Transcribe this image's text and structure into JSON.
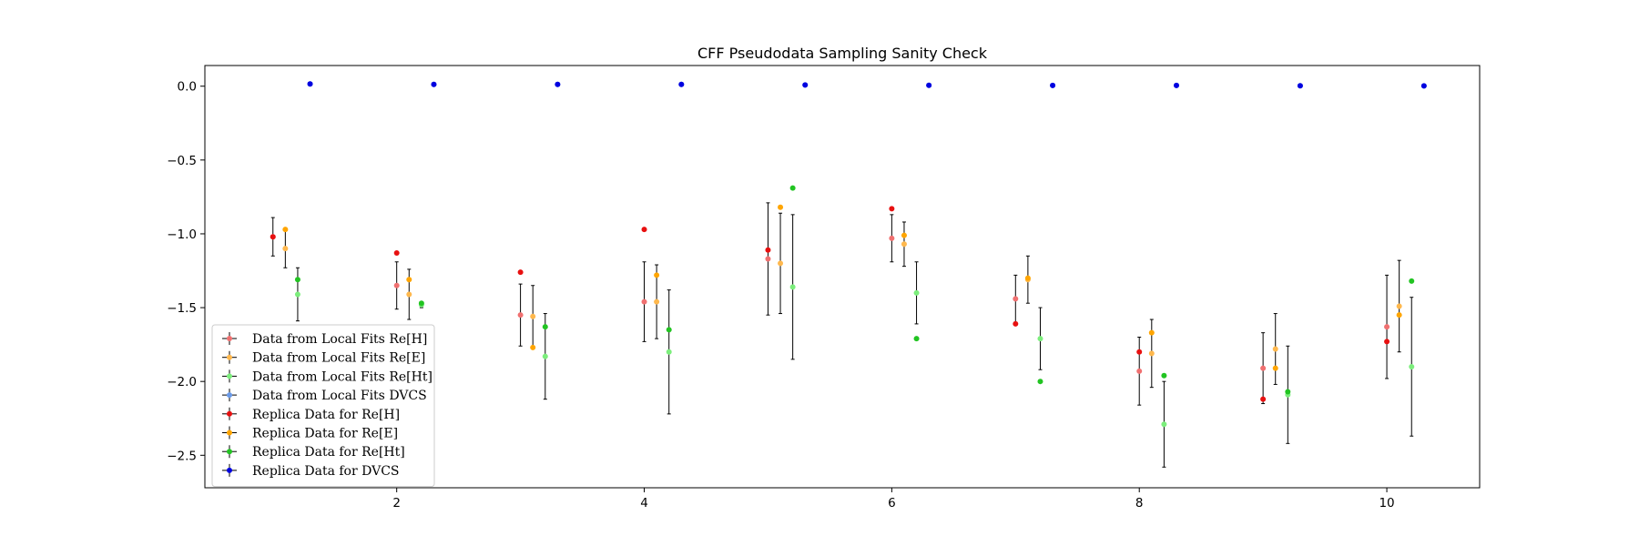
{
  "chart_data": {
    "type": "scatter",
    "title": "CFF Pseudodata Sampling Sanity Check",
    "xlabel": "",
    "ylabel": "",
    "xlim": [
      0.45,
      10.75
    ],
    "ylim": [
      -2.72,
      0.14
    ],
    "x_ticks": [
      2,
      4,
      6,
      8,
      10
    ],
    "y_ticks": [
      0.0,
      -0.5,
      -1.0,
      -1.5,
      -2.0,
      -2.5
    ],
    "grid": false,
    "legend_position": "lower-left",
    "series": [
      {
        "name": "Data from Local Fits Re[H]",
        "color": "#f07070",
        "kind": "errorbar",
        "x": [
          1,
          2,
          3,
          4,
          5,
          6,
          7,
          8,
          9,
          10
        ],
        "y": [
          -1.02,
          -1.35,
          -1.55,
          -1.46,
          -1.17,
          -1.03,
          -1.44,
          -1.93,
          -1.91,
          -1.63
        ],
        "err": [
          0.13,
          0.16,
          0.21,
          0.27,
          0.38,
          0.16,
          0.16,
          0.23,
          0.24,
          0.35
        ]
      },
      {
        "name": "Data from Local Fits Re[E]",
        "color": "#ffb84d",
        "kind": "errorbar",
        "x": [
          1.1,
          2.1,
          3.1,
          4.1,
          5.1,
          6.1,
          7.1,
          8.1,
          9.1,
          10.1
        ],
        "y": [
          -1.1,
          -1.41,
          -1.56,
          -1.46,
          -1.2,
          -1.07,
          -1.31,
          -1.81,
          -1.78,
          -1.49
        ],
        "err": [
          0.13,
          0.17,
          0.21,
          0.25,
          0.34,
          0.15,
          0.16,
          0.23,
          0.24,
          0.31
        ]
      },
      {
        "name": "Data from Local Fits Re[Ht]",
        "color": "#7cee7c",
        "kind": "errorbar",
        "x": [
          1.2,
          2.2,
          3.2,
          4.2,
          5.2,
          6.2,
          7.2,
          8.2,
          9.2,
          10.2
        ],
        "y": [
          -1.41,
          -1.48,
          -1.83,
          -1.8,
          -1.36,
          -1.4,
          -1.71,
          -2.29,
          -2.09,
          -1.9
        ],
        "err": [
          0.18,
          0.02,
          0.29,
          0.42,
          0.49,
          0.21,
          0.21,
          0.29,
          0.33,
          0.47
        ]
      },
      {
        "name": "Data from Local Fits DVCS",
        "color": "#6a9ae8",
        "kind": "errorbar",
        "x": [
          1.3,
          2.3,
          3.3,
          4.3,
          5.3,
          6.3,
          7.3,
          8.3,
          9.3,
          10.3
        ],
        "y": [
          0.015,
          0.012,
          0.012,
          0.012,
          0.008,
          0.006,
          0.005,
          0.005,
          0.003,
          0.002
        ],
        "err": [
          0.002,
          0.002,
          0.002,
          0.002,
          0.002,
          0.002,
          0.002,
          0.002,
          0.002,
          0.002
        ]
      },
      {
        "name": "Replica Data for Re[H]",
        "color": "#e81010",
        "kind": "replica",
        "x": [
          1,
          2,
          3,
          4,
          5,
          6,
          7,
          8,
          9,
          10
        ],
        "y": [
          -1.02,
          -1.13,
          -1.26,
          -0.97,
          -1.11,
          -0.83,
          -1.61,
          -1.8,
          -2.12,
          -1.73
        ]
      },
      {
        "name": "Replica Data for Re[E]",
        "color": "#ffa500",
        "kind": "replica",
        "x": [
          1.1,
          2.1,
          3.1,
          4.1,
          5.1,
          6.1,
          7.1,
          8.1,
          9.1,
          10.1
        ],
        "y": [
          -0.97,
          -1.31,
          -1.77,
          -1.28,
          -0.82,
          -1.01,
          -1.3,
          -1.67,
          -1.91,
          -1.55
        ]
      },
      {
        "name": "Replica Data for Re[Ht]",
        "color": "#22c422",
        "kind": "replica",
        "x": [
          1.2,
          2.2,
          3.2,
          4.2,
          5.2,
          6.2,
          7.2,
          8.2,
          9.2,
          10.2
        ],
        "y": [
          -1.31,
          -1.47,
          -1.63,
          -1.65,
          -0.69,
          -1.71,
          -2.0,
          -1.96,
          -2.07,
          -1.32
        ]
      },
      {
        "name": "Replica Data for DVCS",
        "color": "#0000e0",
        "kind": "replica",
        "x": [
          1.3,
          2.3,
          3.3,
          4.3,
          5.3,
          6.3,
          7.3,
          8.3,
          9.3,
          10.3
        ],
        "y": [
          0.015,
          0.012,
          0.012,
          0.012,
          0.008,
          0.006,
          0.005,
          0.005,
          0.003,
          0.002
        ]
      }
    ]
  }
}
